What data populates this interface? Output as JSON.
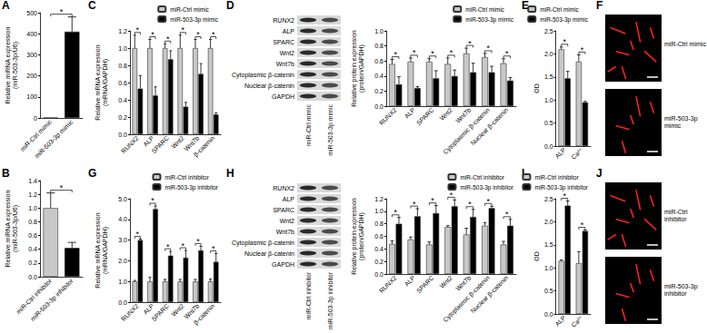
{
  "chart_data": [
    {
      "panel": "A",
      "type": "bar",
      "categories": [
        "miR-Ctrl mimic",
        "miR-503-3p mimic"
      ],
      "values": [
        1,
        410
      ],
      "errors": [
        0,
        70
      ],
      "colors": [
        "#c8c8c8",
        "#000000"
      ],
      "y_label": "Relative miRNA expression\n(miR-503-3p/U6)",
      "ylim": [
        0,
        500
      ],
      "yticks": [
        0,
        100,
        200,
        300,
        400,
        500
      ],
      "annotations": [
        "*"
      ],
      "grid": false
    },
    {
      "panel": "C",
      "type": "bar",
      "categories": [
        "RUNX2",
        "ALP",
        "SPARC",
        "Wnt2",
        "Wnt7b",
        "β-catenin"
      ],
      "series": [
        {
          "name": "miR-Ctrl mimic",
          "color": "#c8c8c8",
          "values": [
            1.0,
            1.0,
            1.0,
            1.0,
            1.0,
            1.0
          ],
          "errors": [
            0.15,
            0.1,
            0.05,
            0.15,
            0.1,
            0.1
          ]
        },
        {
          "name": "miR-503-3p mimic",
          "color": "#000000",
          "values": [
            0.53,
            0.45,
            0.87,
            0.32,
            0.7,
            0.23
          ],
          "errors": [
            0.15,
            0.1,
            0.1,
            0.05,
            0.12,
            0.02
          ]
        }
      ],
      "y_label": "Relative mRNA expression\n(mRNA/GAPDH)",
      "ylim": [
        0,
        1.2
      ],
      "yticks": [
        {
          "value": 0,
          "label": "0.0"
        },
        0.2,
        0.4,
        0.6,
        0.8,
        {
          "value": 1,
          "label": "1.0"
        },
        1.2
      ],
      "annotations": [
        "*",
        "*",
        "*",
        "*",
        "*",
        "*"
      ],
      "legend": "top-right",
      "grid": false
    },
    {
      "panel": "D",
      "type": "bar",
      "categories": [
        "RUNX2",
        "ALP",
        "SPARC",
        "Wnt2",
        "Wnt7b",
        "Cytoplasmic β-catenin",
        "Nuclear β-catenin"
      ],
      "blot": {
        "rows": [
          "RUNX2",
          "ALP",
          "SPARC",
          "Wnt2",
          "Wnt7b",
          "Cytoplasmic β-catenin",
          "Nuclear β-catenin",
          "GAPDH"
        ],
        "lanes": [
          "miR-Ctrl mimic",
          "miR-503-3p mimic"
        ]
      },
      "series": [
        {
          "name": "miR-Ctrl mimic",
          "color": "#c8c8c8",
          "values": [
            0.56,
            0.59,
            0.59,
            0.56,
            0.7,
            0.65,
            0.57
          ],
          "errors": [
            0.06,
            0.05,
            0.04,
            0.08,
            0.07,
            0.05,
            0.06
          ]
        },
        {
          "name": "miR-503-3p mimic",
          "color": "#000000",
          "values": [
            0.29,
            0.24,
            0.37,
            0.4,
            0.45,
            0.45,
            0.34
          ],
          "errors": [
            0.1,
            0.02,
            0.1,
            0.08,
            0.12,
            0.08,
            0.04
          ]
        }
      ],
      "y_label": "Relative protein expression\n(protein/GAPDH)",
      "ylim": [
        0,
        1.0
      ],
      "yticks": [
        {
          "value": 0,
          "label": "0.0"
        },
        0.2,
        0.4,
        0.6,
        0.8,
        {
          "value": 1,
          "label": "1.0"
        }
      ],
      "annotations": [
        "*",
        "*",
        "*",
        "*",
        "*",
        "*",
        "*"
      ],
      "legend": "top-right",
      "grid": false
    },
    {
      "panel": "E",
      "type": "bar",
      "categories": [
        "ALP",
        "Ca²⁺"
      ],
      "series": [
        {
          "name": "miR-Ctrl mimic",
          "color": "#c8c8c8",
          "values": [
            2.1,
            1.83
          ],
          "errors": [
            0.05,
            0.15
          ]
        },
        {
          "name": "miR-503-3p mimic",
          "color": "#000000",
          "values": [
            1.47,
            0.95
          ],
          "errors": [
            0.15,
            0.02
          ]
        }
      ],
      "y_label": "OD",
      "ylim": [
        0,
        2.5
      ],
      "yticks": [
        {
          "value": 0,
          "label": "0.0"
        },
        0.5,
        {
          "value": 1,
          "label": "1.0"
        },
        1.5,
        {
          "value": 2,
          "label": "2.0"
        },
        2.5
      ],
      "annotations": [
        "*",
        "*"
      ],
      "legend": "top-right",
      "grid": false
    },
    {
      "panel": "B",
      "type": "bar",
      "categories": [
        "miR-Ctrl inhibitor",
        "miR-503-3p inhibitor"
      ],
      "values": [
        1.0,
        0.42
      ],
      "errors": [
        0.22,
        0.08
      ],
      "colors": [
        "#c8c8c8",
        "#000000"
      ],
      "y_label": "Relative miRNA expression\n(miR-503-3p/U6)",
      "ylim": [
        0,
        1.4
      ],
      "yticks": [
        {
          "value": 0,
          "label": "0.0"
        },
        0.2,
        0.4,
        0.6,
        0.8,
        {
          "value": 1,
          "label": "1.0"
        },
        1.2,
        1.4
      ],
      "annotations": [
        "*"
      ],
      "grid": false
    },
    {
      "panel": "G",
      "type": "bar",
      "categories": [
        "RUNX2",
        "ALP",
        "SPARC",
        "Wnt2",
        "Wnt7b",
        "β-catenin"
      ],
      "series": [
        {
          "name": "miR-Ctrl inhibitor",
          "color": "#c8c8c8",
          "values": [
            1.0,
            1.0,
            1.0,
            1.0,
            1.0,
            1.0
          ],
          "errors": [
            0.05,
            0.2,
            0.1,
            0.1,
            0.1,
            0.12
          ]
        },
        {
          "name": "miR-503-3p inhibitor",
          "color": "#000000",
          "values": [
            3.0,
            4.5,
            2.25,
            2.15,
            2.5,
            1.95
          ],
          "errors": [
            0.05,
            0.15,
            0.2,
            0.35,
            0.2,
            0.4
          ]
        }
      ],
      "y_label": "Relative mRNA expression\n(mRNA/GAPDH)",
      "ylim": [
        0,
        5.0
      ],
      "yticks": [
        {
          "value": 0,
          "label": "0.0"
        },
        {
          "value": 1,
          "label": "1.0"
        },
        {
          "value": 2,
          "label": "2.0"
        },
        {
          "value": 3,
          "label": "3.0"
        },
        {
          "value": 4,
          "label": "4.0"
        },
        {
          "value": 5,
          "label": "5.0"
        }
      ],
      "annotations": [
        "*",
        "*",
        "*",
        "*",
        "*",
        "*"
      ],
      "legend": "top-right",
      "grid": false
    },
    {
      "panel": "H",
      "type": "bar",
      "categories": [
        "RUNX2",
        "ALP",
        "SPARC",
        "Wnt2",
        "Wnt7b",
        "Cytoplasmic β-catenin",
        "Nuclear β-catenin"
      ],
      "blot": {
        "rows": [
          "RUNX2",
          "ALP",
          "SPARC",
          "Wnt2",
          "Wnt7b",
          "Cytoplasmic β-catenin",
          "Nuclear β-catenin",
          "GAPDH"
        ],
        "lanes": [
          "miR-Ctrl inhibitor",
          "miR-503-3p inhibitor"
        ]
      },
      "series": [
        {
          "name": "miR-Ctrl inhibitor",
          "color": "#c8c8c8",
          "values": [
            0.48,
            0.55,
            0.47,
            0.75,
            0.63,
            0.77,
            0.47
          ],
          "errors": [
            0.05,
            0.04,
            0.04,
            0.02,
            0.1,
            0.05,
            0.05
          ]
        },
        {
          "name": "miR-503-3p inhibitor",
          "color": "#000000",
          "values": [
            0.8,
            0.92,
            0.97,
            1.08,
            0.91,
            1.05,
            0.77
          ],
          "errors": [
            0.1,
            0.12,
            0.12,
            0.1,
            0.12,
            0.03,
            0.1
          ]
        }
      ],
      "y_label": "Relative protein expression\n(protein/GAPDH)",
      "ylim": [
        0,
        1.2
      ],
      "yticks": [
        {
          "value": 0,
          "label": "0.0"
        },
        0.2,
        0.4,
        0.6,
        0.8,
        {
          "value": 1,
          "label": "1.0"
        },
        1.2
      ],
      "annotations": [
        "*",
        "*",
        "*",
        "*",
        "*",
        "*",
        "*"
      ],
      "legend": "top-right",
      "grid": false
    },
    {
      "panel": "I",
      "type": "bar",
      "categories": [
        "ALP",
        "Ca²⁺"
      ],
      "series": [
        {
          "name": "miR-Ctrl inhibitor",
          "color": "#c8c8c8",
          "values": [
            1.15,
            1.1
          ],
          "errors": [
            0.02,
            0.25
          ]
        },
        {
          "name": "miR-503-3p inhibitor",
          "color": "#000000",
          "values": [
            2.35,
            1.8
          ],
          "errors": [
            0.1,
            0.02
          ]
        }
      ],
      "y_label": "OD",
      "ylim": [
        0,
        2.5
      ],
      "yticks": [
        {
          "value": 0,
          "label": "0.0"
        },
        0.5,
        {
          "value": 1,
          "label": "1.0"
        },
        1.5,
        {
          "value": 2,
          "label": "2.0"
        },
        2.5
      ],
      "annotations": [
        "*",
        "*"
      ],
      "legend": "top-right",
      "grid": false
    }
  ],
  "images": [
    {
      "panel": "F",
      "labels": [
        "miR-Ctrl mimic",
        "miR-503-3p mimic"
      ]
    },
    {
      "panel": "J",
      "labels": [
        "miR-Ctrl inhibitor",
        "miR-503-3p inhibitor"
      ]
    }
  ]
}
